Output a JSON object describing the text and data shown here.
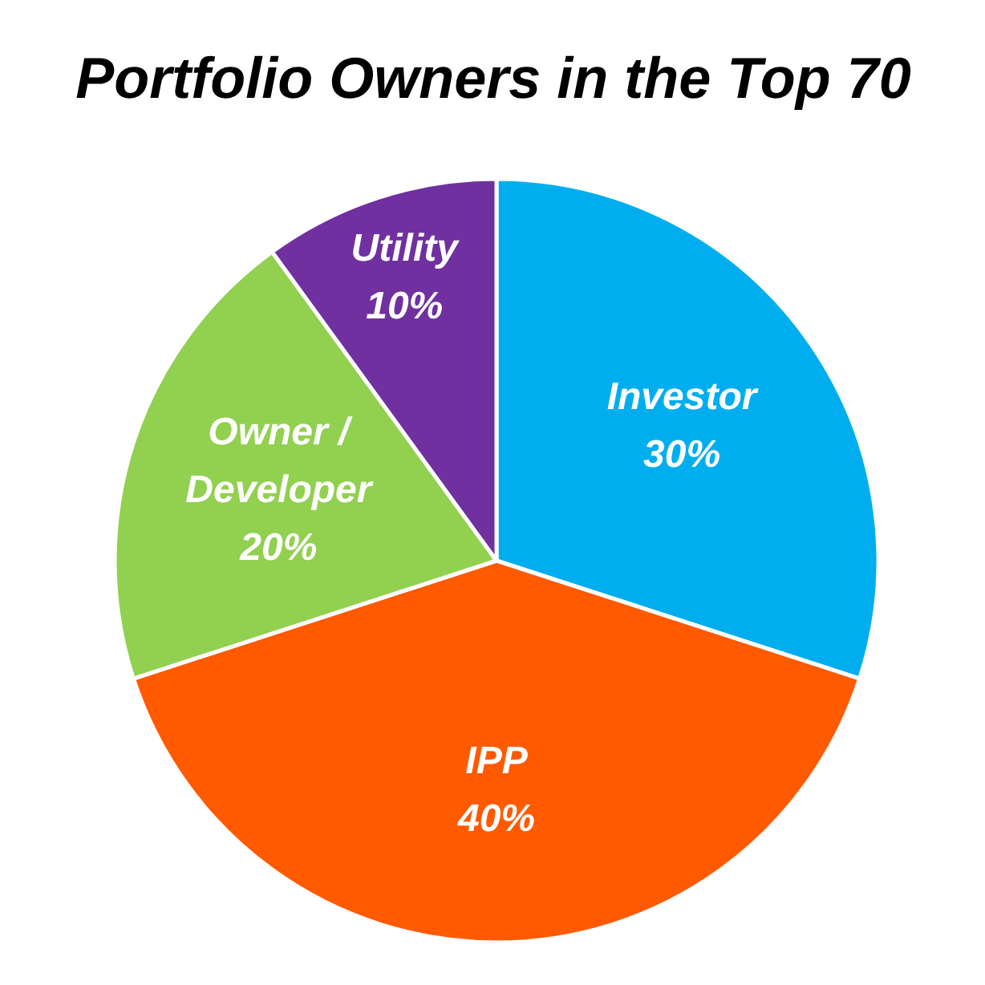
{
  "chart_data": {
    "type": "pie",
    "title": "Portfolio Owners in the Top 70",
    "categories": [
      "Investor",
      "IPP",
      "Owner / Developer",
      "Utility"
    ],
    "values": [
      30,
      40,
      20,
      10
    ],
    "value_labels": [
      "30%",
      "40%",
      "20%",
      "10%"
    ],
    "colors": [
      "#00aeef",
      "#ff5a00",
      "#92d050",
      "#7030a0"
    ]
  }
}
